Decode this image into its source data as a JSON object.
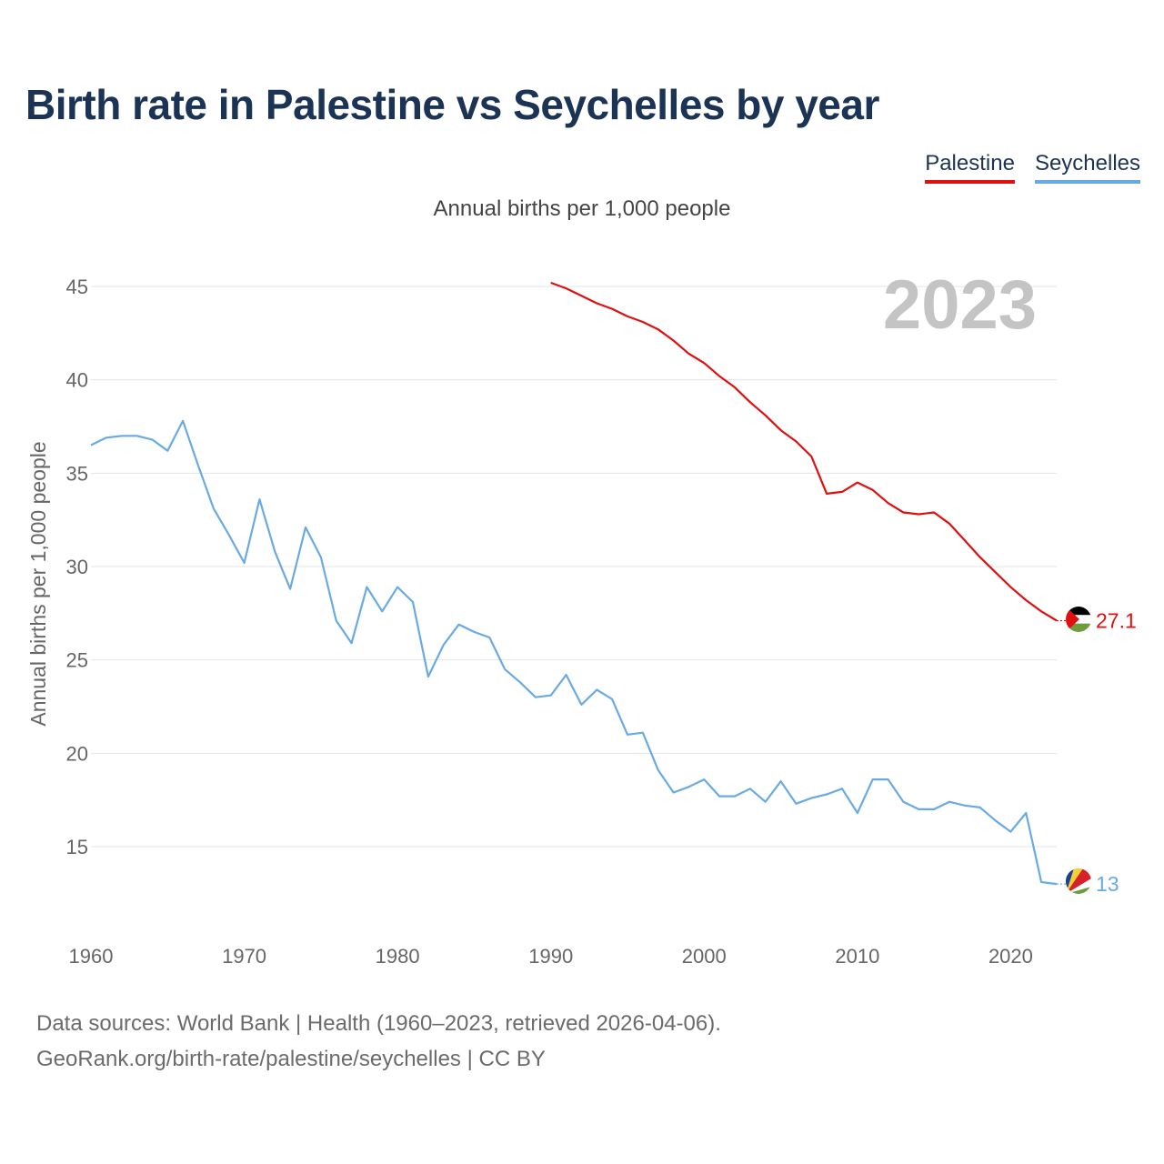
{
  "title": "Birth rate in Palestine vs Seychelles by year",
  "subtitle": "Annual births per 1,000 people",
  "year_watermark": "2023",
  "legend": [
    {
      "label": "Palestine",
      "color": "#e01010"
    },
    {
      "label": "Seychelles",
      "color": "#6aaae4"
    }
  ],
  "sources": {
    "line1": "Data sources: World Bank | Health (1960–2023, retrieved 2026-04-06).",
    "line2": "GeoRank.org/birth-rate/palestine/seychelles | CC BY"
  },
  "chart_data": {
    "type": "line",
    "title": "Birth rate in Palestine vs Seychelles by year",
    "ylabel": "Annual births per 1,000 people",
    "xlabel": "",
    "xlim": [
      1960,
      2023
    ],
    "ylim": [
      11,
      47
    ],
    "x_ticks": [
      1960,
      1970,
      1980,
      1990,
      2000,
      2010,
      2020
    ],
    "y_ticks": [
      15,
      20,
      25,
      30,
      35,
      40,
      45
    ],
    "grid": true,
    "series": [
      {
        "name": "Palestine",
        "color": "#e01010",
        "end_label": "27.1",
        "x": [
          1990,
          1991,
          1992,
          1993,
          1994,
          1995,
          1996,
          1997,
          1998,
          1999,
          2000,
          2001,
          2002,
          2003,
          2004,
          2005,
          2006,
          2007,
          2008,
          2009,
          2010,
          2011,
          2012,
          2013,
          2014,
          2015,
          2016,
          2017,
          2018,
          2019,
          2020,
          2021,
          2022,
          2023
        ],
        "values": [
          45.2,
          44.9,
          44.5,
          44.1,
          43.8,
          43.4,
          43.1,
          42.7,
          42.1,
          41.4,
          40.9,
          40.2,
          39.6,
          38.8,
          38.1,
          37.3,
          36.7,
          35.9,
          33.9,
          34.0,
          34.5,
          34.1,
          33.4,
          32.9,
          32.8,
          32.9,
          32.3,
          31.4,
          30.5,
          29.7,
          28.9,
          28.2,
          27.6,
          27.1
        ]
      },
      {
        "name": "Seychelles",
        "color": "#6aaae4",
        "end_label": "13",
        "x": [
          1960,
          1961,
          1962,
          1963,
          1964,
          1965,
          1966,
          1967,
          1968,
          1969,
          1970,
          1971,
          1972,
          1973,
          1974,
          1975,
          1976,
          1977,
          1978,
          1979,
          1980,
          1981,
          1982,
          1983,
          1984,
          1985,
          1986,
          1987,
          1988,
          1989,
          1990,
          1991,
          1992,
          1993,
          1994,
          1995,
          1996,
          1997,
          1998,
          1999,
          2000,
          2001,
          2002,
          2003,
          2004,
          2005,
          2006,
          2007,
          2008,
          2009,
          2010,
          2011,
          2012,
          2013,
          2014,
          2015,
          2016,
          2017,
          2018,
          2019,
          2020,
          2021,
          2022,
          2023
        ],
        "values": [
          36.5,
          36.9,
          37.0,
          37.0,
          36.8,
          36.2,
          37.8,
          35.4,
          33.1,
          31.7,
          30.2,
          33.6,
          30.8,
          28.8,
          32.1,
          30.5,
          27.1,
          25.9,
          28.9,
          27.6,
          28.9,
          28.1,
          24.1,
          25.8,
          26.9,
          26.5,
          26.2,
          24.5,
          23.8,
          23.0,
          23.1,
          24.2,
          22.6,
          23.4,
          22.9,
          21.0,
          21.1,
          19.1,
          17.9,
          18.2,
          18.6,
          17.7,
          17.7,
          18.1,
          17.4,
          18.5,
          17.3,
          17.6,
          17.8,
          18.1,
          16.8,
          18.6,
          18.6,
          17.4,
          17.0,
          17.0,
          17.4,
          17.2,
          17.1,
          16.4,
          15.8,
          16.8,
          13.1,
          13.0
        ]
      }
    ]
  }
}
